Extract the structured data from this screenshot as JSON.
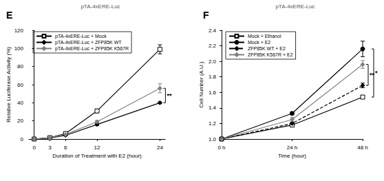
{
  "chart_data": [
    {
      "type": "line",
      "title": "pTA-4xERE-Luc",
      "panel": "E",
      "x_label": "Duration of Treatment with E2 (hour)",
      "y_label": "Relative Luciferase Activity (%)",
      "x": [
        0,
        3,
        6,
        12,
        24
      ],
      "xlim": [
        -1,
        25
      ],
      "xticks": [
        0,
        3,
        6,
        12,
        24
      ],
      "ylim": [
        0,
        120
      ],
      "yticks": [
        0,
        20,
        40,
        60,
        80,
        100,
        120
      ],
      "series": [
        {
          "name": "pTA-4xERE-Luc + Mock",
          "color": "#000000",
          "marker": "open-square",
          "line_style": "solid",
          "values": [
            0,
            1.5,
            6,
            31,
            99
          ],
          "errors": [
            0.3,
            0.5,
            1,
            2,
            5
          ]
        },
        {
          "name": "pTA-4xERE-Luc + ZFP85K WT",
          "color": "#000000",
          "marker": "diamond",
          "line_style": "solid",
          "values": [
            0,
            1,
            4,
            16,
            40
          ],
          "errors": [
            0.2,
            0.3,
            0.5,
            1,
            1
          ]
        },
        {
          "name": "pTA-4xERE-Luc + ZFP85K K567R",
          "color": "#808080",
          "marker": "diamond",
          "line_style": "solid",
          "values": [
            0,
            1.2,
            5,
            19,
            56
          ],
          "errors": [
            0.2,
            0.4,
            0.6,
            1.5,
            5
          ]
        }
      ],
      "annotations": [
        {
          "text": "**",
          "x": 24,
          "y_from": 40,
          "y_to": 56
        }
      ],
      "legend": "upper left",
      "grid": false
    },
    {
      "type": "line",
      "title": "pTA-4xERE-Luc",
      "panel": "F",
      "x_label": "Time (hour)",
      "y_label": "Cell Number (A.U.)",
      "categories": [
        "0 h",
        "24 h",
        "48 h"
      ],
      "ylim": [
        1.0,
        2.4
      ],
      "yticks": [
        {
          "value": 1.0,
          "label": "1.0"
        },
        1.2,
        1.4,
        1.6,
        1.8,
        {
          "value": 2.0,
          "label": "2.0"
        },
        2.2,
        2.4
      ],
      "series": [
        {
          "name": "Mock + Ethanol",
          "color": "#000000",
          "marker": "open-square",
          "line_style": "solid",
          "values": [
            1.0,
            1.18,
            1.54
          ],
          "errors": [
            0.01,
            0.02,
            0.02
          ]
        },
        {
          "name": "Mock + E2",
          "color": "#000000",
          "marker": "circle",
          "line_style": "solid",
          "values": [
            1.0,
            1.33,
            2.16
          ],
          "errors": [
            0.01,
            0.02,
            0.1
          ]
        },
        {
          "name": "ZFP85K WT + E2",
          "color": "#000000",
          "marker": "diamond",
          "line_style": "dashed",
          "values": [
            1.0,
            1.2,
            1.69
          ],
          "errors": [
            0.01,
            0.02,
            0.03
          ]
        },
        {
          "name": "ZFP85K K567R + E2",
          "color": "#808080",
          "marker": "diamond",
          "line_style": "solid",
          "values": [
            1.0,
            1.25,
            1.96
          ],
          "errors": [
            0.01,
            0.03,
            0.05
          ]
        }
      ],
      "annotations": [
        {
          "text": "**",
          "x": "48 h",
          "y_from": 1.69,
          "y_to": 1.96
        },
        {
          "text": "*",
          "x": "48 h",
          "y_from": 1.54,
          "y_to": 2.16
        }
      ],
      "legend": "upper left",
      "grid": false
    }
  ]
}
